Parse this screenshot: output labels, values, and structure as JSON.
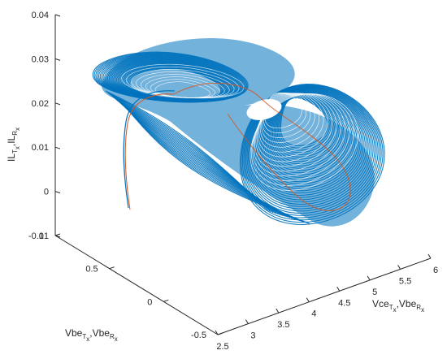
{
  "chart_data": {
    "type": "line",
    "projection": "3d",
    "grid": false,
    "title": "",
    "axes": {
      "x": {
        "label_main_1": "Vce",
        "label_sub_1": "T",
        "label_x_1": "x",
        "label_sep": ",",
        "label_main_2": "Vbe",
        "label_sub_2": "R",
        "label_x_2": "x",
        "lim": [
          2.5,
          6
        ],
        "ticks": [
          "2.5",
          "3",
          "3.5",
          "4",
          "4.5",
          "5",
          "5.5",
          "6"
        ]
      },
      "y": {
        "label_main_1": "Vbe",
        "label_sub_1": "T",
        "label_x_1": "x",
        "label_sep": ",",
        "label_main_2": "Vbe",
        "label_sub_2": "R",
        "label_x_2": "x",
        "lim": [
          -0.5,
          1
        ],
        "ticks": [
          "-0.5",
          "0",
          "0.5",
          "1"
        ]
      },
      "z": {
        "label_main_1": "IL",
        "label_sub_1": "T",
        "label_x_1": "x",
        "label_sep": ",",
        "label_main_2": "IL",
        "label_sub_2": "R",
        "label_x_2": "x",
        "lim": [
          -0.01,
          0.04
        ],
        "ticks": [
          "-0.01",
          "0",
          "0.01",
          "0.02",
          "0.03",
          "0.04"
        ]
      }
    },
    "series": [
      {
        "color": "#0072BD",
        "description_kind": "chaotic double-scroll attractor (dense trajectory)"
      },
      {
        "color": "#D95319",
        "description_kind": "single trajectory overlay"
      }
    ]
  }
}
